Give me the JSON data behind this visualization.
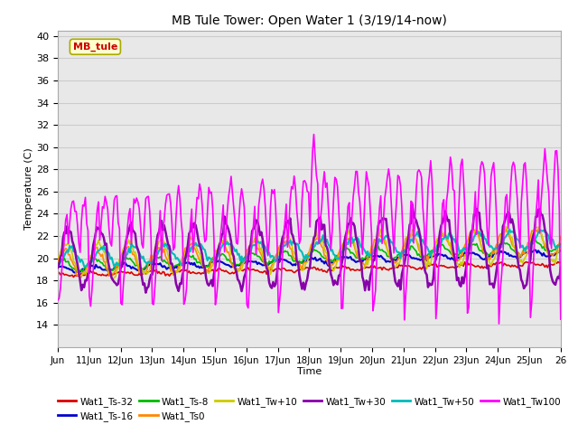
{
  "title": "MB Tule Tower: Open Water 1 (3/19/14-now)",
  "xlabel": "Time",
  "ylabel": "Temperature (C)",
  "ylim": [
    12,
    40.5
  ],
  "yticks": [
    14,
    16,
    18,
    20,
    22,
    24,
    26,
    28,
    30,
    32,
    34,
    36,
    38,
    40
  ],
  "xtick_labels": [
    "Jun",
    "11Jun",
    "12Jun",
    "13Jun",
    "14Jun",
    "15Jun",
    "16Jun",
    "17Jun",
    "18Jun",
    "19Jun",
    "20Jun",
    "21Jun",
    "22Jun",
    "23Jun",
    "24Jun",
    "25Jun",
    "26"
  ],
  "legend_label": "MB_tule",
  "series": {
    "Wat1_Ts-32": {
      "color": "#dd0000",
      "lw": 1.2
    },
    "Wat1_Ts-16": {
      "color": "#0000cc",
      "lw": 1.5
    },
    "Wat1_Ts-8": {
      "color": "#00bb00",
      "lw": 1.2
    },
    "Wat1_Ts0": {
      "color": "#ff8800",
      "lw": 1.2
    },
    "Wat1_Tw+10": {
      "color": "#cccc00",
      "lw": 1.2
    },
    "Wat1_Tw+30": {
      "color": "#8800aa",
      "lw": 1.8
    },
    "Wat1_Tw+50": {
      "color": "#00bbbb",
      "lw": 1.5
    },
    "Wat1_Tw100": {
      "color": "#ff00ff",
      "lw": 1.2
    }
  },
  "background_color": "#ffffff",
  "grid_color": "#cccccc"
}
